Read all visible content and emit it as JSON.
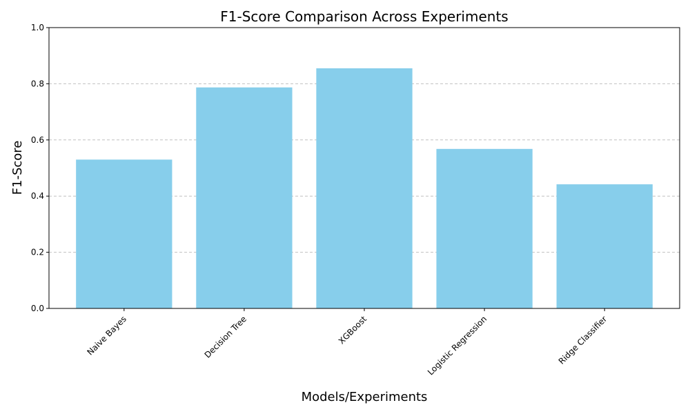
{
  "chart_data": {
    "type": "bar",
    "title": "F1-Score Comparison Across Experiments",
    "xlabel": "Models/Experiments",
    "ylabel": "F1-Score",
    "categories": [
      "Naive Bayes",
      "Decision Tree",
      "XGBoost",
      "Logistic Regression",
      "Ridge Classifier"
    ],
    "values": [
      0.53,
      0.787,
      0.855,
      0.568,
      0.442
    ],
    "ylim": [
      0,
      1.0
    ],
    "yticks": [
      "0.0",
      "0.2",
      "0.4",
      "0.6",
      "0.8",
      "1.0"
    ],
    "grid": "y-dashed",
    "bar_color": "#87CEEB",
    "grid_color": "#c0c0c0"
  }
}
